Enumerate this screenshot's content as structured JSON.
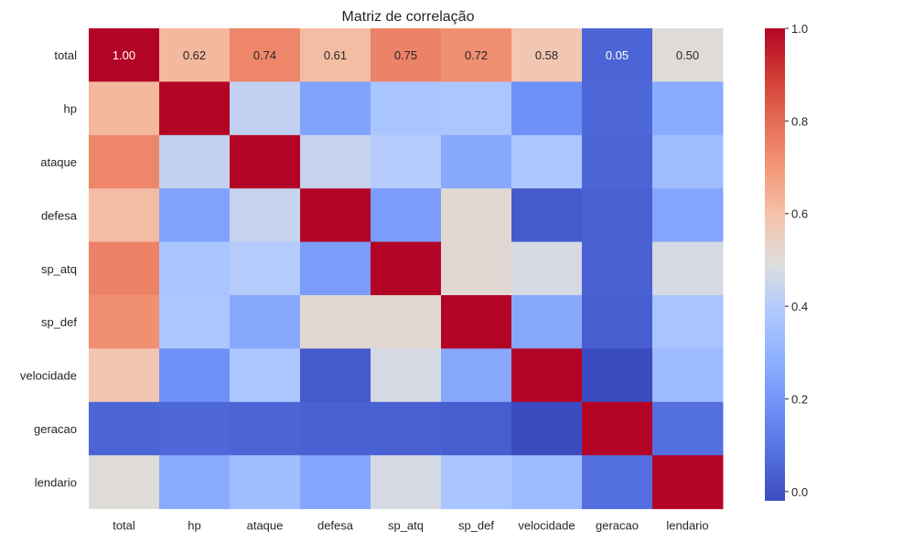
{
  "chart_data": {
    "type": "heatmap",
    "title": "Matriz de correlação",
    "xlabel": "",
    "ylabel": "",
    "rows": [
      "total",
      "hp",
      "ataque",
      "defesa",
      "sp_atq",
      "sp_def",
      "velocidade",
      "geracao",
      "lendario"
    ],
    "columns": [
      "total",
      "hp",
      "ataque",
      "defesa",
      "sp_atq",
      "sp_def",
      "velocidade",
      "geracao",
      "lendario"
    ],
    "values": [
      [
        1.0,
        0.62,
        0.74,
        0.61,
        0.75,
        0.72,
        0.58,
        0.05,
        0.5
      ],
      [
        0.62,
        1.0,
        0.43,
        0.24,
        0.37,
        0.38,
        0.18,
        0.06,
        0.27
      ],
      [
        0.74,
        0.43,
        1.0,
        0.44,
        0.4,
        0.26,
        0.38,
        0.05,
        0.34
      ],
      [
        0.61,
        0.24,
        0.44,
        1.0,
        0.22,
        0.51,
        0.02,
        0.04,
        0.25
      ],
      [
        0.75,
        0.37,
        0.4,
        0.22,
        1.0,
        0.51,
        0.47,
        0.04,
        0.47
      ],
      [
        0.72,
        0.38,
        0.26,
        0.51,
        0.51,
        1.0,
        0.26,
        0.03,
        0.37
      ],
      [
        0.58,
        0.18,
        0.38,
        0.02,
        0.47,
        0.26,
        1.0,
        -0.02,
        0.33
      ],
      [
        0.05,
        0.06,
        0.05,
        0.04,
        0.04,
        0.03,
        -0.02,
        1.0,
        0.08
      ],
      [
        0.5,
        0.27,
        0.34,
        0.25,
        0.47,
        0.37,
        0.33,
        0.08,
        1.0
      ]
    ],
    "annotated_row": 0,
    "annotation_format_decimals": 2,
    "colormap": "coolwarm",
    "color_range": [
      -0.02,
      1.0
    ],
    "colorbar": {
      "ticks": [
        0.0,
        0.2,
        0.4,
        0.6,
        0.8,
        1.0
      ],
      "tick_labels": [
        "0.0",
        "0.2",
        "0.4",
        "0.6",
        "0.8",
        "1.0"
      ]
    },
    "legend": "colorbar-right"
  }
}
